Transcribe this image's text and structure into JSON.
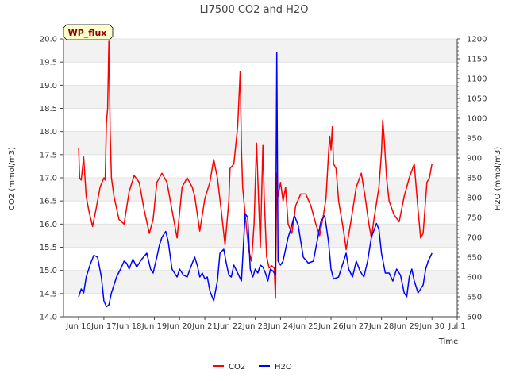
{
  "chart_data": {
    "type": "line",
    "title": "LI7500 CO2 and H2O",
    "badge": "WP_flux",
    "xlabel": "Time",
    "ylabel_left": "CO2 (mmol/m3)",
    "ylabel_right": "H2O (mmol/m3)",
    "x_ticks": [
      "Jun 16",
      "Jun 17",
      "Jun 18",
      "Jun 19",
      "Jun 20",
      "Jun 21",
      "Jun 22",
      "Jun 23",
      "Jun 24",
      "Jun 25",
      "Jun 26",
      "Jun 27",
      "Jun 28",
      "Jun 29",
      "Jun 30",
      "Jul 1"
    ],
    "xlim": [
      15.4,
      31.0
    ],
    "ylim_left": [
      14.0,
      20.0
    ],
    "ylim_right": [
      500,
      1200
    ],
    "y_ticks_left": [
      "14.0",
      "14.5",
      "15.0",
      "15.5",
      "16.0",
      "16.5",
      "17.0",
      "17.5",
      "18.0",
      "18.5",
      "19.0",
      "19.5",
      "20.0"
    ],
    "y_ticks_right": [
      "500",
      "550",
      "600",
      "650",
      "700",
      "750",
      "800",
      "850",
      "900",
      "950",
      "1000",
      "1050",
      "1100",
      "1150",
      "1200"
    ],
    "series": [
      {
        "name": "CO2",
        "color": "#ff0000",
        "axis": "left",
        "x": [
          16.0,
          16.04,
          16.1,
          16.2,
          16.3,
          16.4,
          16.55,
          16.7,
          16.85,
          17.0,
          17.05,
          17.1,
          17.15,
          17.2,
          17.25,
          17.3,
          17.4,
          17.6,
          17.8,
          18.0,
          18.2,
          18.4,
          18.6,
          18.8,
          18.95,
          19.1,
          19.3,
          19.5,
          19.7,
          19.9,
          20.1,
          20.3,
          20.5,
          20.6,
          20.8,
          21.0,
          21.2,
          21.35,
          21.5,
          21.65,
          21.8,
          21.95,
          22.0,
          22.15,
          22.3,
          22.4,
          22.45,
          22.5,
          22.6,
          22.75,
          22.85,
          22.95,
          23.05,
          23.1,
          23.2,
          23.3,
          23.35,
          23.45,
          23.55,
          23.65,
          23.75,
          23.8,
          23.85,
          23.9,
          24.0,
          24.1,
          24.2,
          24.3,
          24.45,
          24.6,
          24.8,
          25.0,
          25.2,
          25.4,
          25.55,
          25.7,
          25.8,
          25.9,
          25.95,
          26.0,
          26.05,
          26.1,
          26.2,
          26.3,
          26.5,
          26.6,
          26.8,
          27.0,
          27.2,
          27.35,
          27.5,
          27.6,
          27.7,
          27.9,
          28.0,
          28.05,
          28.1,
          28.2,
          28.3,
          28.5,
          28.7,
          28.9,
          29.1,
          29.3,
          29.45,
          29.55,
          29.65,
          29.8,
          29.9,
          30.0
        ],
        "y": [
          17.65,
          17.0,
          16.95,
          17.45,
          16.6,
          16.3,
          15.95,
          16.35,
          16.8,
          17.0,
          16.95,
          18.2,
          18.5,
          19.95,
          18.0,
          17.0,
          16.6,
          16.1,
          16.0,
          16.7,
          17.05,
          16.9,
          16.3,
          15.8,
          16.1,
          16.9,
          17.1,
          16.9,
          16.3,
          15.7,
          16.8,
          17.0,
          16.8,
          16.6,
          15.85,
          16.55,
          16.9,
          17.4,
          17.0,
          16.3,
          15.55,
          16.5,
          17.2,
          17.3,
          18.1,
          19.3,
          17.6,
          16.8,
          16.2,
          15.4,
          15.2,
          16.0,
          17.75,
          17.0,
          15.5,
          17.7,
          16.6,
          15.3,
          15.05,
          15.1,
          15.05,
          14.4,
          17.1,
          16.6,
          16.9,
          16.5,
          16.8,
          16.0,
          15.8,
          16.4,
          16.65,
          16.65,
          16.4,
          16.0,
          15.75,
          16.2,
          16.55,
          17.5,
          17.9,
          17.6,
          18.1,
          17.3,
          17.2,
          16.5,
          15.85,
          15.45,
          16.1,
          16.8,
          17.1,
          16.6,
          16.0,
          15.7,
          16.1,
          16.8,
          17.55,
          18.25,
          17.9,
          17.0,
          16.5,
          16.2,
          16.05,
          16.6,
          17.0,
          17.3,
          16.3,
          15.7,
          15.8,
          16.9,
          17.0,
          17.3
        ]
      },
      {
        "name": "H2O",
        "color": "#0000ff",
        "axis": "right",
        "x": [
          16.0,
          16.1,
          16.2,
          16.3,
          16.45,
          16.6,
          16.75,
          16.9,
          17.0,
          17.1,
          17.2,
          17.3,
          17.5,
          17.7,
          17.8,
          17.9,
          18.0,
          18.15,
          18.3,
          18.5,
          18.7,
          18.85,
          18.95,
          19.1,
          19.2,
          19.3,
          19.45,
          19.55,
          19.7,
          19.8,
          19.9,
          20.0,
          20.15,
          20.3,
          20.5,
          20.6,
          20.7,
          20.8,
          20.9,
          21.0,
          21.1,
          21.2,
          21.35,
          21.5,
          21.6,
          21.75,
          21.85,
          21.95,
          22.05,
          22.15,
          22.3,
          22.45,
          22.6,
          22.7,
          22.8,
          22.9,
          23.0,
          23.1,
          23.2,
          23.3,
          23.4,
          23.5,
          23.6,
          23.7,
          23.8,
          23.85,
          23.9,
          24.0,
          24.1,
          24.3,
          24.4,
          24.55,
          24.7,
          24.9,
          25.1,
          25.3,
          25.45,
          25.6,
          25.75,
          25.9,
          26.0,
          26.1,
          26.3,
          26.45,
          26.6,
          26.7,
          26.85,
          27.0,
          27.15,
          27.3,
          27.45,
          27.6,
          27.8,
          27.9,
          28.0,
          28.15,
          28.3,
          28.45,
          28.6,
          28.75,
          28.9,
          29.0,
          29.1,
          29.2,
          29.3,
          29.45,
          29.55,
          29.65,
          29.75,
          29.85,
          30.0
        ],
        "y": [
          550,
          570,
          560,
          600,
          630,
          655,
          650,
          600,
          540,
          525,
          530,
          560,
          600,
          625,
          640,
          635,
          620,
          645,
          625,
          645,
          660,
          620,
          610,
          650,
          680,
          700,
          715,
          690,
          620,
          610,
          600,
          620,
          605,
          600,
          635,
          650,
          630,
          600,
          610,
          595,
          600,
          565,
          540,
          590,
          660,
          670,
          635,
          605,
          600,
          630,
          610,
          590,
          760,
          750,
          620,
          600,
          620,
          610,
          630,
          625,
          610,
          590,
          620,
          615,
          605,
          1165,
          640,
          630,
          640,
          700,
          720,
          755,
          730,
          650,
          635,
          640,
          690,
          740,
          755,
          690,
          620,
          595,
          600,
          630,
          660,
          620,
          600,
          640,
          615,
          600,
          640,
          700,
          735,
          720,
          660,
          610,
          610,
          590,
          620,
          605,
          560,
          550,
          600,
          620,
          590,
          560,
          570,
          580,
          620,
          640,
          660
        ]
      }
    ],
    "legend": [
      "CO2",
      "H2O"
    ],
    "legend_position": "bottom-center"
  }
}
